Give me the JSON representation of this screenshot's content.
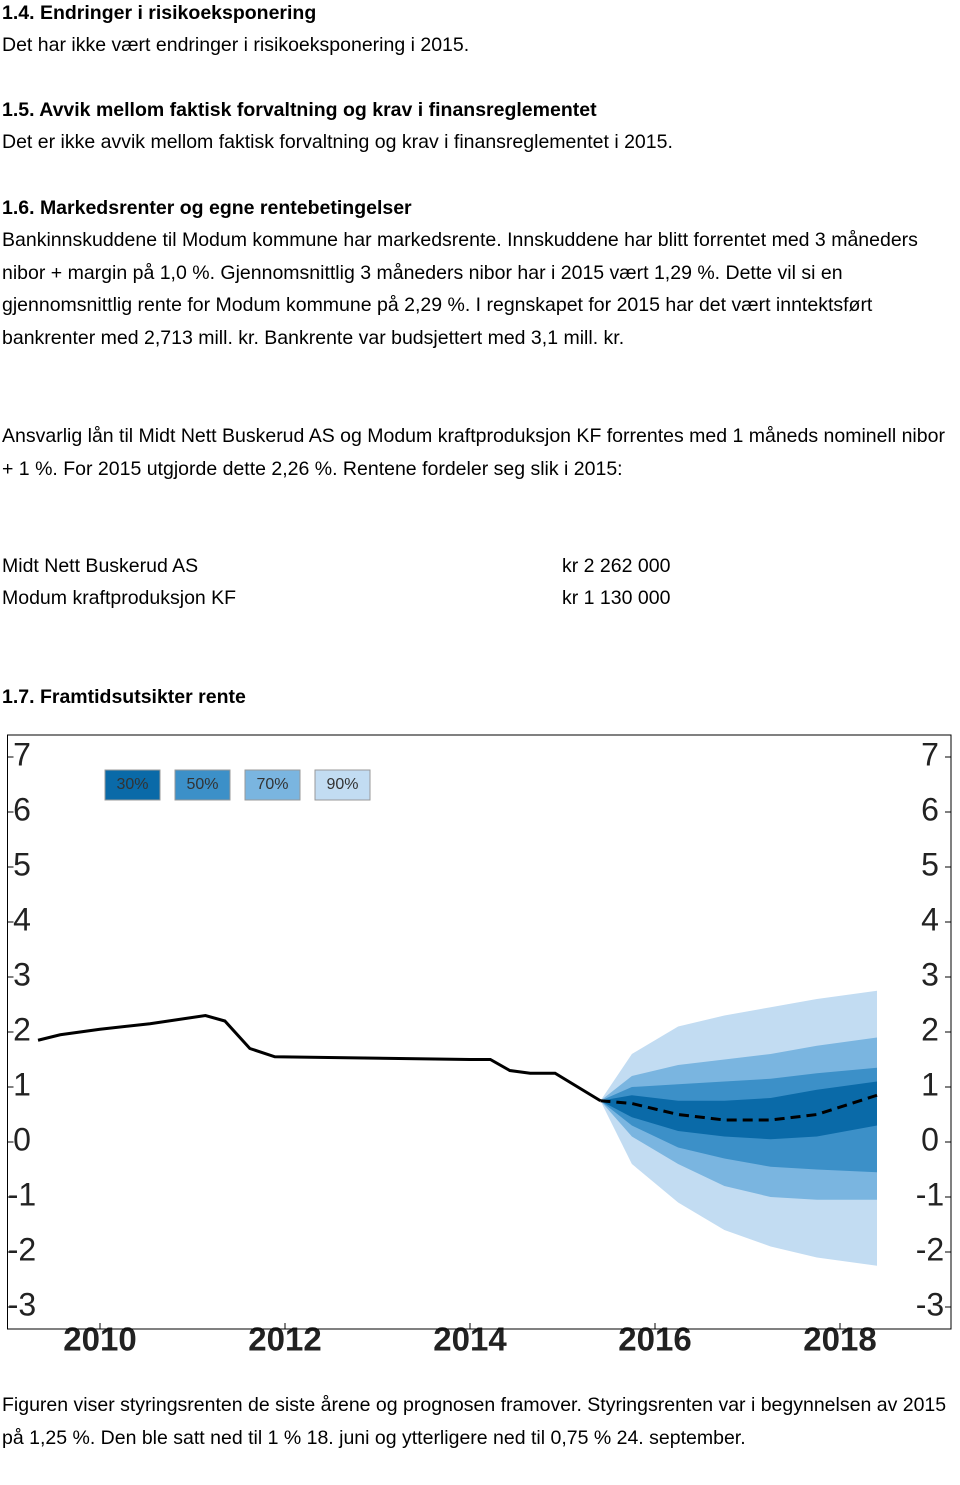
{
  "sections": [
    {
      "heading": "1.4. Endringer i risikoeksponering",
      "text": "Det har ikke vært endringer i risikoeksponering i 2015."
    },
    {
      "heading": "1.5. Avvik mellom faktisk forvaltning og krav i finansreglementet",
      "text": "Det er ikke avvik mellom faktisk forvaltning og krav i finansreglementet i 2015."
    },
    {
      "heading": "1.6. Markedsrenter og egne rentebetingelser",
      "paragraphs": [
        "Bankinnskuddene til Modum kommune har markedsrente. Innskuddene har blitt forrentet med 3 måneders nibor + margin på 1,0 %. Gjennomsnittlig 3 måneders nibor har i 2015 vært 1,29 %. Dette vil si en gjennomsnittlig rente for Modum kommune på 2,29 %. I regnskapet for 2015 har det vært inntektsført bankrenter med 2,713 mill. kr. Bankrente var budsjettert med 3,1 mill. kr.",
        "Ansvarlig lån til Midt Nett Buskerud AS og Modum kraftproduksjon KF forrentes med 1 måneds nominell nibor + 1 %. For 2015 utgjorde dette 2,26 %. Rentene fordeler seg slik i 2015:"
      ]
    }
  ],
  "table": {
    "rows": [
      [
        "Midt Nett Buskerud AS",
        "kr 2 262 000"
      ],
      [
        "Modum kraftproduksjon KF",
        "kr 1 130 000"
      ]
    ]
  },
  "chart_heading": "1.7. Framtidsutsikter rente",
  "chart_data": {
    "type": "fan",
    "x": [
      2009.33,
      2009.57,
      2010,
      2010.54,
      2011.14,
      2011.35,
      2011.62,
      2011.89,
      2014,
      2014.22,
      2014.43,
      2014.65,
      2014.92,
      2015.41
    ],
    "values": [
      1.85,
      1.95,
      2.05,
      2.15,
      2.3,
      2.2,
      1.7,
      1.55,
      1.5,
      1.5,
      1.3,
      1.25,
      1.25,
      0.75
    ],
    "color": "#000000",
    "forecast": {
      "x": [
        2015.41,
        2015.75,
        2016.25,
        2016.75,
        2017.25,
        2017.75,
        2018.4
      ],
      "median": [
        0.75,
        0.7,
        0.5,
        0.4,
        0.4,
        0.5,
        0.85
      ],
      "bands": [
        {
          "name": "90%",
          "color": "#c2dcf2",
          "lower": [
            0.75,
            -0.4,
            -1.1,
            -1.6,
            -1.9,
            -2.1,
            -2.25
          ],
          "upper": [
            0.75,
            1.6,
            2.1,
            2.3,
            2.45,
            2.6,
            2.75
          ]
        },
        {
          "name": "70%",
          "color": "#7ab5e0",
          "lower": [
            0.75,
            0.1,
            -0.4,
            -0.8,
            -1.0,
            -1.05,
            -1.05
          ],
          "upper": [
            0.75,
            1.2,
            1.4,
            1.5,
            1.6,
            1.75,
            1.9
          ]
        },
        {
          "name": "50%",
          "color": "#3c90c8",
          "lower": [
            0.75,
            0.3,
            -0.1,
            -0.3,
            -0.45,
            -0.5,
            -0.55
          ],
          "upper": [
            0.75,
            1.0,
            1.05,
            1.1,
            1.15,
            1.25,
            1.35
          ]
        },
        {
          "name": "30%",
          "color": "#0a6aa8",
          "lower": [
            0.75,
            0.45,
            0.2,
            0.1,
            0.05,
            0.1,
            0.3
          ],
          "upper": [
            0.75,
            0.85,
            0.75,
            0.75,
            0.8,
            0.95,
            1.1
          ]
        }
      ]
    },
    "xlim": [
      2009,
      2019.2
    ],
    "xticks": [
      2010,
      2012,
      2014,
      2016,
      2018
    ],
    "ylim": [
      -3.4,
      7.4
    ],
    "yticks": [
      -3,
      -2,
      -1,
      0,
      1,
      2,
      3,
      4,
      5,
      6,
      7
    ]
  },
  "caption": "Figuren viser styringsrenten de siste årene og prognosen framover. Styringsrenten var i begynnelsen av 2015 på 1,25 %. Den ble satt ned til 1 % 18. juni og ytterligere ned til 0,75 % 24. september."
}
